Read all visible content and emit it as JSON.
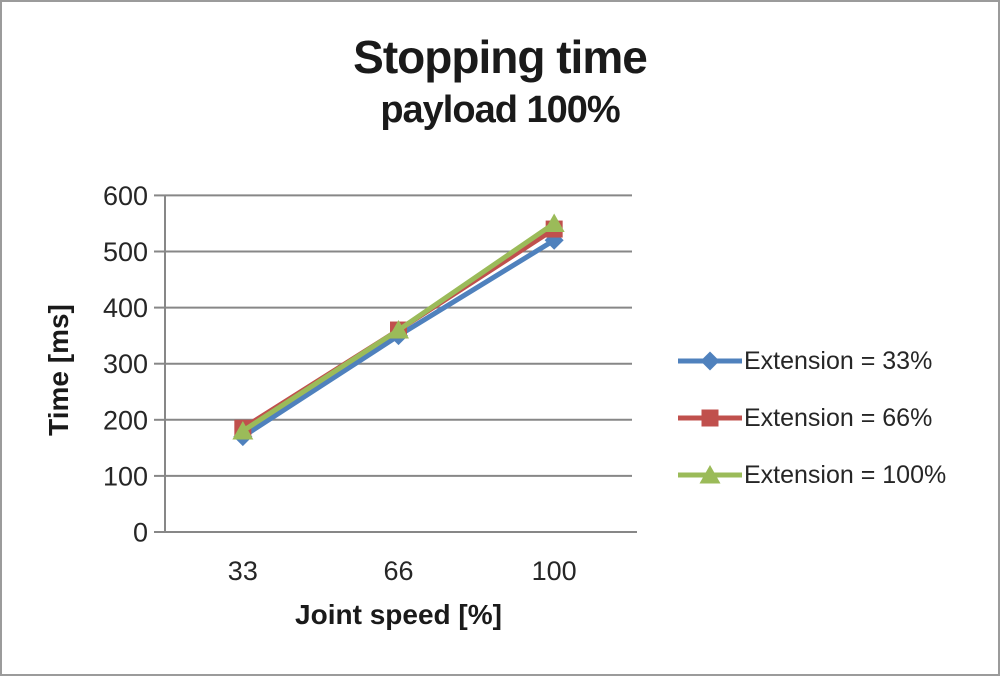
{
  "chart_data": {
    "type": "line",
    "title": "Stopping time",
    "subtitle": "payload 100%",
    "xlabel": "Joint speed [%]",
    "ylabel": "Time [ms]",
    "categories": [
      "33",
      "66",
      "100"
    ],
    "ylim": [
      0,
      600
    ],
    "y_tick_step": 100,
    "y_tick_labels": [
      "0",
      "100",
      "200",
      "300",
      "400",
      "500",
      "600"
    ],
    "grid": true,
    "legend_position": "right",
    "series": [
      {
        "name": "Extension = 33%",
        "marker": "diamond",
        "color": "#4F81BD",
        "values": [
          170,
          350,
          520
        ]
      },
      {
        "name": "Extension = 66%",
        "marker": "square",
        "color": "#C0504D",
        "values": [
          185,
          360,
          540
        ]
      },
      {
        "name": "Extension = 100%",
        "marker": "triangle",
        "color": "#9BBB59",
        "values": [
          180,
          360,
          550
        ]
      }
    ],
    "colors": {
      "gridline": "#878787",
      "axis": "#878787",
      "tick_text": "#262626",
      "title_text": "#1a1a1a",
      "frame_border": "#9b9b9b",
      "background": "#ffffff"
    }
  }
}
